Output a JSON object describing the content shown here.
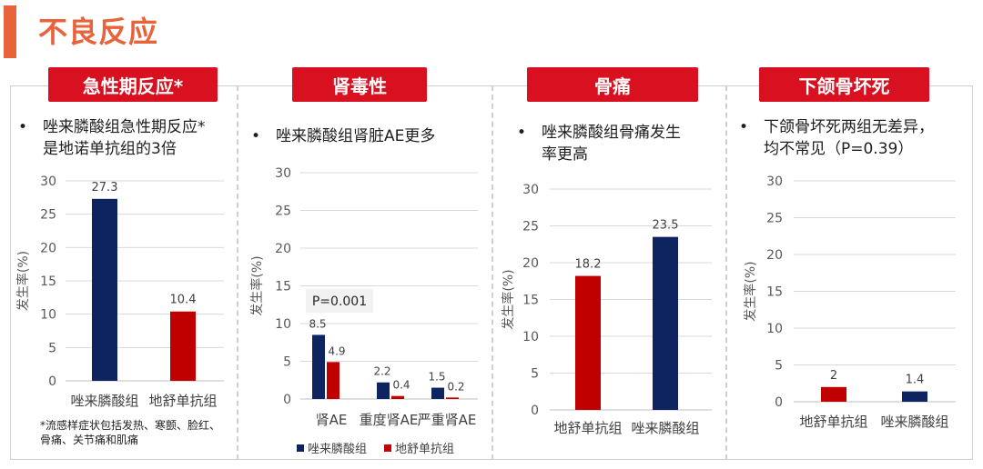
{
  "page": {
    "title": "不良反应"
  },
  "footnote": "*流感样症状包括发热、寒颤、脸红、\n骨痛、关节痛和肌痛",
  "colors": {
    "navy": "#0d2461",
    "red": "#c00000",
    "header": "#d8101f",
    "accent": "#e8623a"
  },
  "panels": [
    {
      "header": "急性期反应*",
      "bullet": "唑来膦酸组急性期反应*\n是地诺单抗组的3倍"
    },
    {
      "header": "肾毒性",
      "bullet": "唑来膦酸组肾脏AE更多"
    },
    {
      "header": "骨痛",
      "bullet": "唑来膦酸组骨痛发生\n率更高"
    },
    {
      "header": "下颌骨坏死",
      "bullet": "下颌骨坏死两组无差异，\n均不常见（P=0.39）"
    }
  ],
  "chart_data": [
    {
      "type": "bar",
      "categories": [
        "唑来膦酸组",
        "地舒单抗组"
      ],
      "values": [
        27.3,
        10.4
      ],
      "bar_colors": [
        "#0d2461",
        "#c00000"
      ],
      "ylabel": "发生率(%)",
      "ylim": [
        0,
        30
      ],
      "yticks": [
        0,
        5,
        10,
        15,
        20,
        25,
        30
      ],
      "grid": true
    },
    {
      "type": "bar",
      "categories": [
        "肾AE",
        "重度肾AE",
        "严重肾AE"
      ],
      "series": [
        {
          "name": "唑来膦酸组",
          "values": [
            8.5,
            2.2,
            1.5
          ],
          "color": "#0d2461"
        },
        {
          "name": "地舒单抗组",
          "values": [
            4.9,
            0.4,
            0.2
          ],
          "color": "#c00000"
        }
      ],
      "ylabel": "发生率(%)",
      "ylim": [
        0,
        30
      ],
      "yticks": [
        0,
        5,
        10,
        15,
        20,
        25,
        30
      ],
      "annotation": "P=0.001",
      "legend_position": "bottom",
      "grid": true
    },
    {
      "type": "bar",
      "categories": [
        "地舒单抗组",
        "唑来膦酸组"
      ],
      "values": [
        18.2,
        23.5
      ],
      "bar_colors": [
        "#c00000",
        "#0d2461"
      ],
      "ylabel": "发生率(%)",
      "ylim": [
        0,
        30
      ],
      "yticks": [
        0,
        5,
        10,
        15,
        20,
        25,
        30
      ],
      "grid": true
    },
    {
      "type": "bar",
      "categories": [
        "地舒单抗组",
        "唑来膦酸组"
      ],
      "values": [
        2,
        1.4
      ],
      "bar_colors": [
        "#c00000",
        "#0d2461"
      ],
      "ylabel": "发生率(%)",
      "ylim": [
        0,
        30
      ],
      "yticks": [
        0,
        5,
        10,
        15,
        20,
        25,
        30
      ],
      "grid": true
    }
  ]
}
